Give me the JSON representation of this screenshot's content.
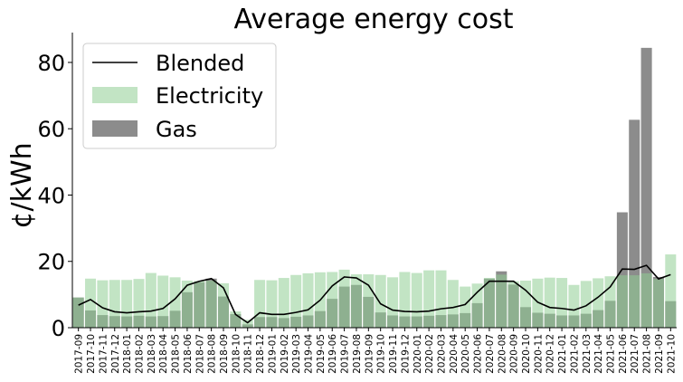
{
  "chart_data": {
    "type": "bar",
    "title": "Average energy cost",
    "xlabel": "",
    "ylabel": "¢/kWh",
    "ylim": [
      0,
      89
    ],
    "yticks": [
      0,
      20,
      40,
      60,
      80
    ],
    "grid": false,
    "legend_position": "top-left",
    "categories": [
      "2017-09",
      "2017-10",
      "2017-11",
      "2017-12",
      "2018-01",
      "2018-02",
      "2018-03",
      "2018-04",
      "2018-05",
      "2018-06",
      "2018-07",
      "2018-08",
      "2018-09",
      "2018-10",
      "2018-11",
      "2018-12",
      "2019-01",
      "2019-02",
      "2019-03",
      "2019-04",
      "2019-05",
      "2019-06",
      "2019-07",
      "2019-08",
      "2019-09",
      "2019-10",
      "2019-11",
      "2019-12",
      "2020-01",
      "2020-02",
      "2020-03",
      "2020-04",
      "2020-05",
      "2020-06",
      "2020-07",
      "2020-08",
      "2020-09",
      "2020-10",
      "2020-11",
      "2020-12",
      "2021-01",
      "2021-02",
      "2021-03",
      "2021-04",
      "2021-05",
      "2021-06",
      "2021-07",
      "2021-08",
      "2021-09",
      "2021-10"
    ],
    "series": [
      {
        "name": "Blended",
        "kind": "line",
        "color": "#000000",
        "values": [
          6.8,
          8.5,
          6.0,
          4.8,
          4.5,
          4.8,
          5.0,
          5.8,
          8.7,
          12.8,
          14.0,
          14.8,
          12.0,
          4.0,
          1.5,
          4.5,
          4.0,
          4.0,
          4.6,
          5.4,
          8.3,
          12.6,
          15.3,
          15.0,
          12.8,
          7.2,
          5.3,
          4.9,
          4.8,
          5.0,
          5.7,
          6.1,
          7.0,
          10.7,
          14.0,
          14.0,
          14.0,
          11.3,
          7.7,
          6.1,
          5.8,
          5.3,
          6.6,
          9.2,
          12.3,
          17.7,
          17.6,
          18.8,
          14.7,
          16.0
        ]
      },
      {
        "name": "Electricity",
        "kind": "bar",
        "color": "#8fce93",
        "values": [
          9.1,
          14.8,
          14.3,
          14.4,
          14.4,
          14.7,
          16.5,
          15.7,
          15.2,
          14.2,
          14.1,
          14.2,
          13.4,
          4.9,
          2.4,
          14.4,
          14.3,
          15.0,
          15.9,
          16.4,
          16.7,
          16.8,
          17.5,
          16.1,
          16.1,
          15.9,
          15.2,
          16.8,
          16.5,
          17.3,
          17.3,
          14.4,
          12.4,
          13.3,
          15.0,
          16.0,
          14.0,
          14.2,
          14.8,
          15.1,
          15.0,
          12.9,
          14.1,
          14.9,
          15.5,
          15.8,
          15.8,
          16.4,
          14.7,
          22.1
        ]
      },
      {
        "name": "Gas",
        "kind": "bar",
        "color": "#8c8c8c",
        "values": [
          9.1,
          5.2,
          3.8,
          3.5,
          3.4,
          3.6,
          3.4,
          3.5,
          5.1,
          10.7,
          13.7,
          14.8,
          9.4,
          4.1,
          1.0,
          3.2,
          3.2,
          2.9,
          3.3,
          3.7,
          5.0,
          8.7,
          12.4,
          12.9,
          9.3,
          4.6,
          3.7,
          3.4,
          3.4,
          3.6,
          3.8,
          4.0,
          4.4,
          7.4,
          14.8,
          17.0,
          13.0,
          6.2,
          4.5,
          4.2,
          3.7,
          3.7,
          4.2,
          5.3,
          8.1,
          34.8,
          62.7,
          84.4,
          15.3,
          8.0
        ]
      }
    ]
  }
}
